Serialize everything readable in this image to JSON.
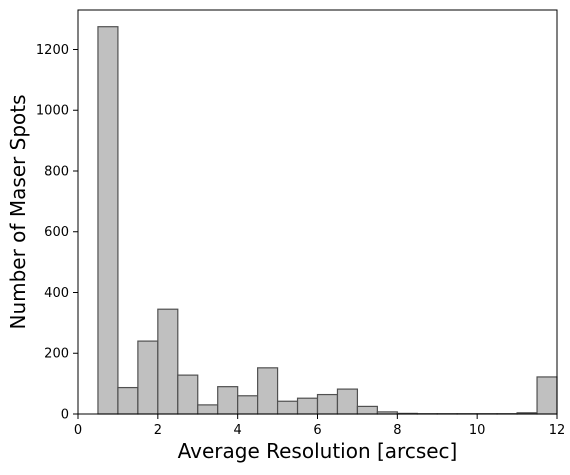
{
  "chart_data": {
    "type": "bar",
    "xlabel": "Average Resolution [arcsec]",
    "ylabel": "Number of Maser Spots",
    "xlim": [
      0,
      12
    ],
    "ylim": [
      0,
      1330
    ],
    "xticks": [
      0,
      2,
      4,
      6,
      8,
      10,
      12
    ],
    "yticks": [
      0,
      200,
      400,
      600,
      800,
      1000,
      1200
    ],
    "bin_width": 0.5,
    "bin_starts": [
      0.5,
      1.0,
      1.5,
      2.0,
      2.5,
      3.0,
      3.5,
      4.0,
      4.5,
      5.0,
      5.5,
      6.0,
      6.5,
      7.0,
      7.5,
      8.0,
      8.5,
      9.0,
      9.5,
      10.0,
      10.5,
      11.0,
      11.5
    ],
    "values": [
      1275,
      87,
      240,
      345,
      128,
      30,
      90,
      60,
      152,
      42,
      52,
      64,
      82,
      25,
      7,
      2,
      1,
      1,
      1,
      1,
      1,
      4,
      122
    ],
    "bar_fill": "#c0c0c0",
    "bar_edge": "#505050",
    "grid": false
  }
}
